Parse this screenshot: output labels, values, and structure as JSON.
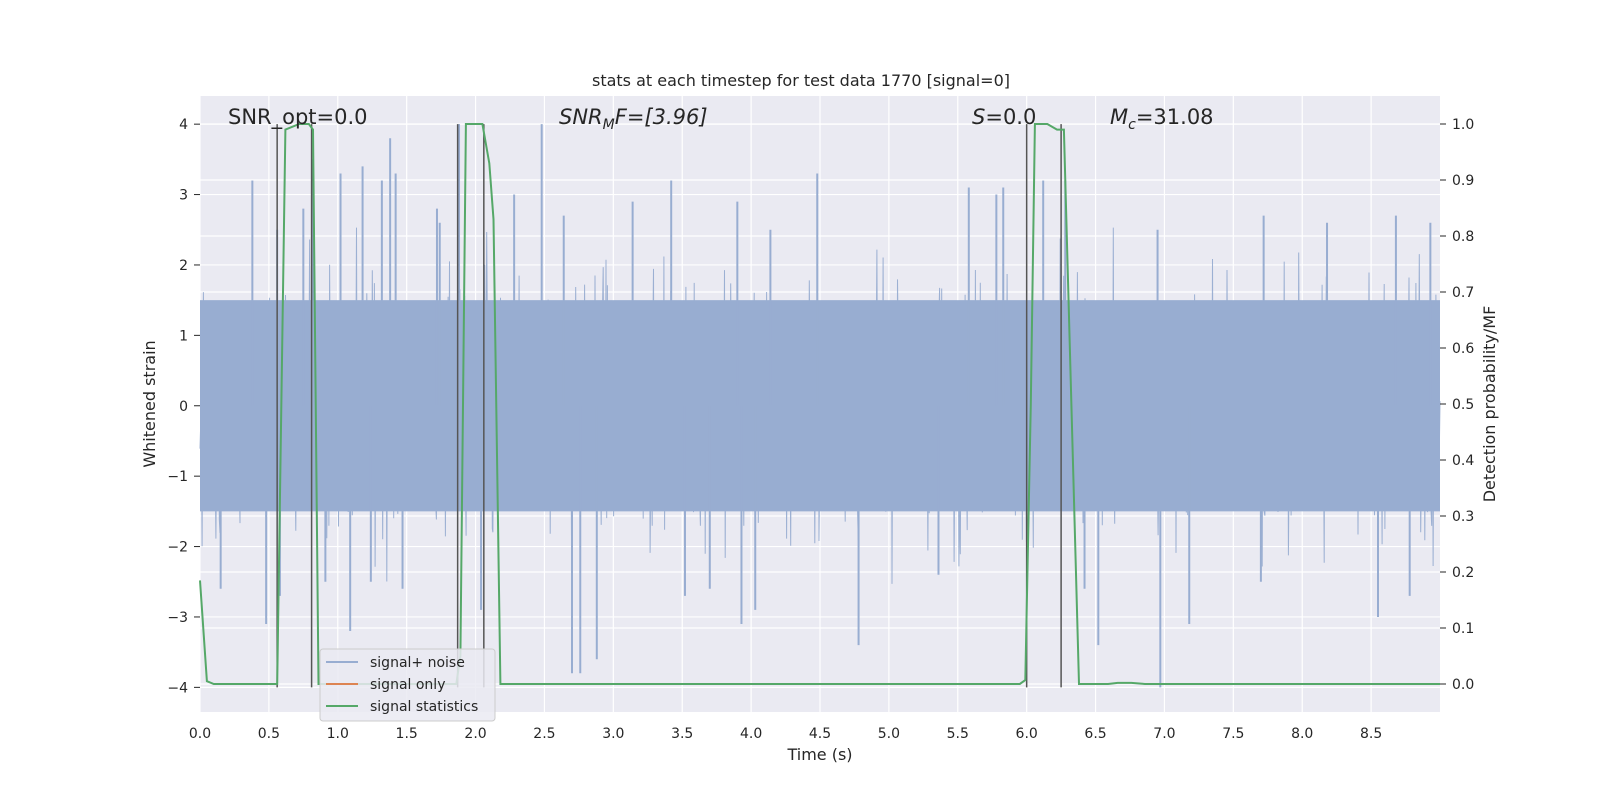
{
  "chart_data": {
    "type": "line",
    "title": "stats at each timestep for test data 1770 [signal=0]",
    "xlabel": "Time (s)",
    "ylabel": "Whitened strain",
    "y2label": "Detection probability/MF",
    "xlim": [
      0,
      9.0
    ],
    "ylim": [
      -4.35,
      4.4
    ],
    "y2lim": [
      -0.05,
      1.05
    ],
    "x_ticks": [
      "0.0",
      "0.5",
      "1.0",
      "1.5",
      "2.0",
      "2.5",
      "3.0",
      "3.5",
      "4.0",
      "4.5",
      "5.0",
      "5.5",
      "6.0",
      "6.5",
      "7.0",
      "7.5",
      "8.0",
      "8.5"
    ],
    "y_ticks": [
      "4",
      "3",
      "2",
      "1",
      "0",
      "−1",
      "−2",
      "−3",
      "−4"
    ],
    "y2_ticks": [
      "1.0",
      "0.9",
      "0.8",
      "0.7",
      "0.6",
      "0.5",
      "0.4",
      "0.3",
      "0.2",
      "0.1",
      "0.0"
    ],
    "grid": true,
    "legend_position": "lower-left",
    "annotations": {
      "snr_opt": "SNR_opt=0.0",
      "snr_mf_main": "SNR",
      "snr_mf_sub": "M",
      "snr_mf_tail": "F=[3.96]",
      "s_main": "S",
      "s_tail": "=0.0",
      "mc_main": "M",
      "mc_sub": "c",
      "mc_tail": "=31.08"
    },
    "series": [
      {
        "name": "signal+ noise",
        "color": "#98add1",
        "description_values": "whitened noise, amplitude roughly between -2 and 2 with spikes up to about 4 and down to -4",
        "peaks": [
          [
            0.38,
            3.2
          ],
          [
            0.82,
            3.5
          ],
          [
            1.02,
            3.3
          ],
          [
            1.18,
            3.4
          ],
          [
            1.32,
            3.2
          ],
          [
            1.38,
            3.8
          ],
          [
            1.42,
            3.3
          ],
          [
            1.72,
            2.8
          ],
          [
            1.74,
            2.6
          ],
          [
            2.28,
            3.0
          ],
          [
            2.48,
            4.0
          ],
          [
            3.42,
            3.2
          ],
          [
            4.48,
            3.3
          ],
          [
            5.78,
            3.0
          ],
          [
            5.83,
            3.1
          ],
          [
            6.12,
            3.2
          ],
          [
            6.28,
            3.2
          ],
          [
            8.68,
            2.7
          ],
          [
            8.93,
            2.6
          ],
          [
            0.56,
            2.5
          ],
          [
            0.75,
            2.8
          ],
          [
            1.88,
            4.0
          ],
          [
            2.64,
            2.7
          ],
          [
            3.14,
            2.9
          ],
          [
            3.9,
            2.9
          ],
          [
            4.14,
            2.5
          ],
          [
            5.58,
            3.1
          ],
          [
            6.95,
            2.5
          ],
          [
            7.72,
            2.7
          ],
          [
            8.18,
            2.6
          ]
        ],
        "troughs": [
          [
            0.48,
            -3.1
          ],
          [
            0.58,
            -2.7
          ],
          [
            0.91,
            -2.5
          ],
          [
            1.09,
            -3.2
          ],
          [
            1.47,
            -2.6
          ],
          [
            2.04,
            -2.9
          ],
          [
            2.7,
            -3.8
          ],
          [
            2.76,
            -3.8
          ],
          [
            2.88,
            -3.6
          ],
          [
            3.52,
            -2.7
          ],
          [
            3.93,
            -3.1
          ],
          [
            4.03,
            -2.9
          ],
          [
            4.78,
            -3.4
          ],
          [
            6.52,
            -3.4
          ],
          [
            6.97,
            -4.0
          ],
          [
            7.18,
            -3.1
          ],
          [
            8.55,
            -3.0
          ],
          [
            8.78,
            -2.7
          ],
          [
            0.15,
            -2.6
          ],
          [
            1.24,
            -2.5
          ],
          [
            3.7,
            -2.6
          ],
          [
            5.36,
            -2.4
          ],
          [
            6.42,
            -2.6
          ],
          [
            7.7,
            -2.5
          ]
        ],
        "noise_band": 2.2
      },
      {
        "name": "signal only",
        "color": "#dd8452",
        "values": []
      },
      {
        "name": "signal statistics",
        "color": "#55a868",
        "axis": "right",
        "x": [
          0.0,
          0.05,
          0.1,
          0.55,
          0.56,
          0.62,
          0.72,
          0.79,
          0.82,
          0.86,
          1.86,
          1.89,
          1.93,
          2.05,
          2.1,
          2.13,
          2.18,
          2.22,
          5.95,
          5.99,
          6.03,
          6.06,
          6.15,
          6.22,
          6.27,
          6.38,
          6.42,
          6.59,
          6.66,
          6.76,
          6.86,
          9.0
        ],
        "y": [
          0.185,
          0.005,
          0.0,
          0.0,
          0.0,
          0.99,
          1.0,
          1.0,
          0.99,
          0.0,
          0.0,
          0.05,
          1.0,
          1.0,
          0.93,
          0.83,
          0.0,
          0.0,
          0.0,
          0.007,
          0.5,
          1.0,
          1.0,
          0.99,
          0.99,
          0.0,
          0.0,
          0.0,
          0.002,
          0.002,
          0.0,
          0.0
        ]
      }
    ],
    "vertical_markers": [
      0.56,
      0.81,
      1.87,
      2.06,
      6.0,
      6.25
    ]
  }
}
